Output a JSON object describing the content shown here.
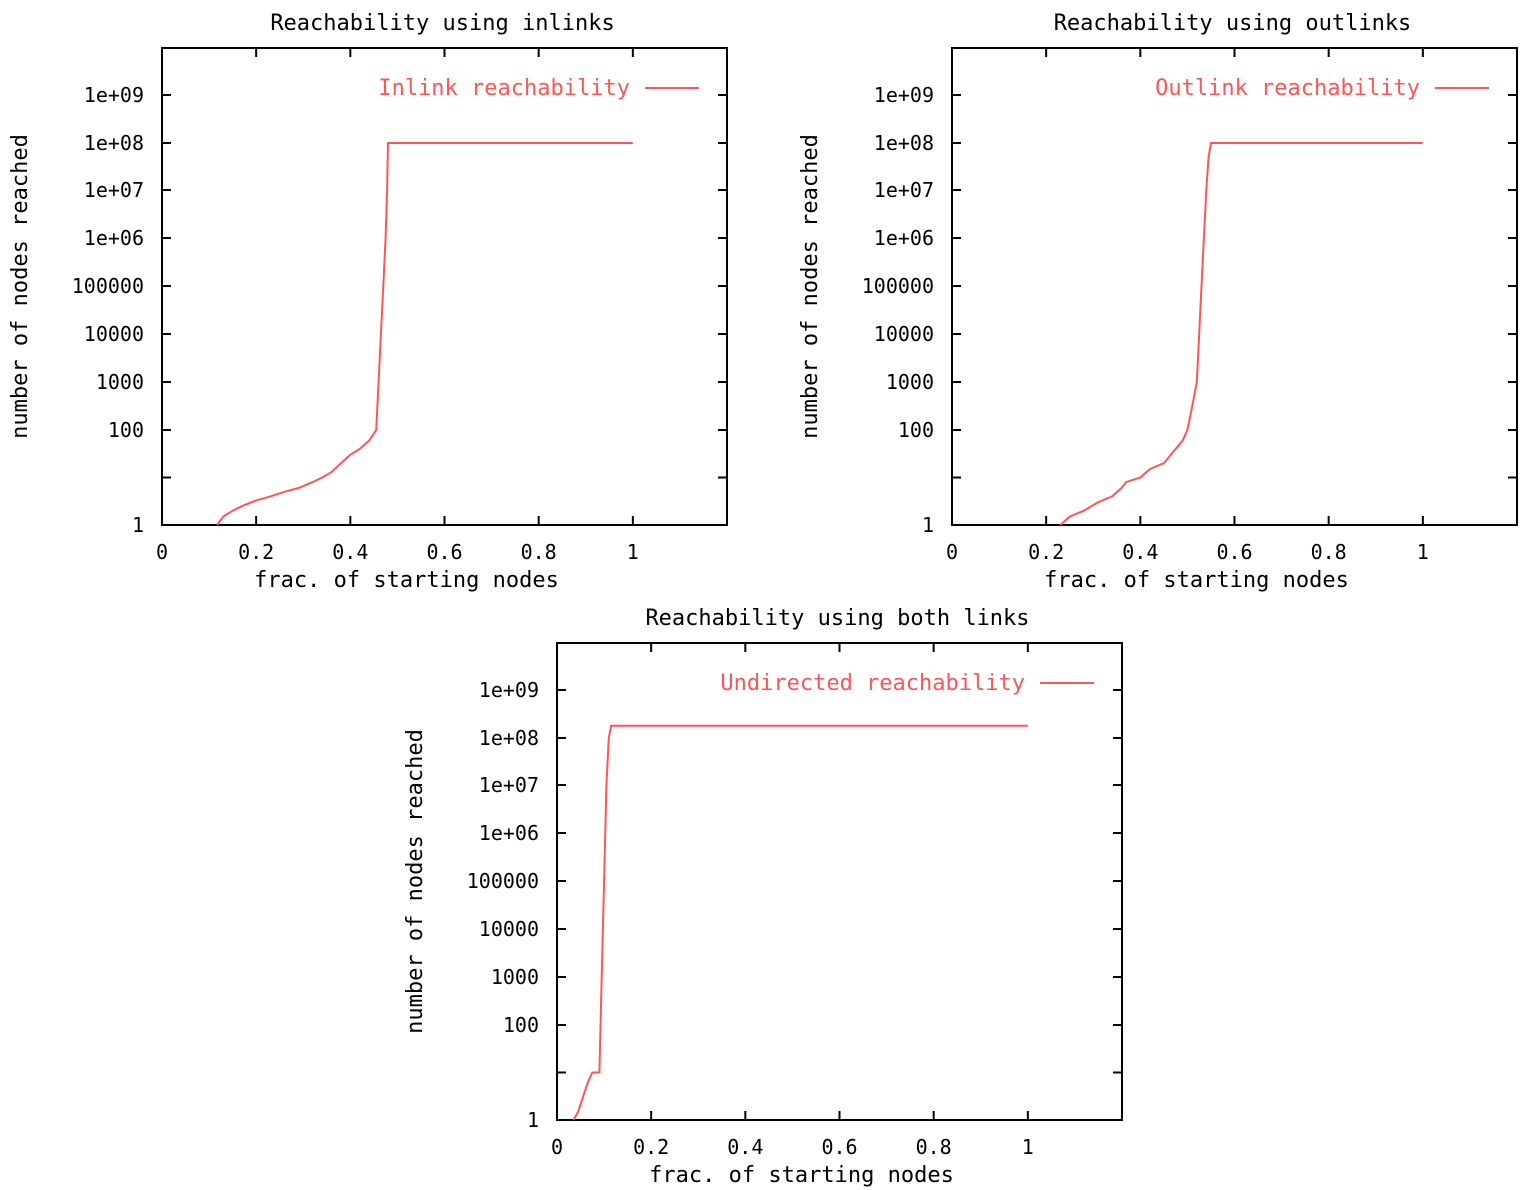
{
  "chart_data": [
    {
      "type": "line",
      "title": "Reachability using inlinks",
      "xlabel": "frac. of starting nodes",
      "ylabel": "number of nodes reached",
      "xlim": [
        0,
        1.2
      ],
      "ylim": [
        1,
        10000000000
      ],
      "yscale": "log",
      "xticks": [
        "0",
        "0.2",
        "0.4",
        "0.6",
        "0.8",
        "1"
      ],
      "yticks": [
        "1",
        "100",
        "1000",
        "10000",
        "100000",
        "1e+06",
        "1e+07",
        "1e+08",
        "1e+09"
      ],
      "legend_position": "top-right",
      "color": "#ff5555",
      "series": [
        {
          "name": "Inlink reachability",
          "x": [
            0.117,
            0.13,
            0.15,
            0.17,
            0.2,
            0.23,
            0.26,
            0.29,
            0.32,
            0.34,
            0.36,
            0.38,
            0.4,
            0.42,
            0.44,
            0.455,
            0.46,
            0.465,
            0.47,
            0.475,
            0.478,
            0.48,
            1.0
          ],
          "values": [
            1,
            1.5,
            2,
            2.5,
            3.3,
            4,
            5,
            6,
            8,
            10,
            13,
            20,
            30,
            40,
            60,
            100,
            1000,
            10000,
            100000,
            1000000,
            10000000,
            100000000,
            100000000
          ]
        }
      ]
    },
    {
      "type": "line",
      "title": "Reachability using outlinks",
      "xlabel": "frac. of starting nodes",
      "ylabel": "number of nodes reached",
      "xlim": [
        0,
        1.2
      ],
      "ylim": [
        1,
        10000000000
      ],
      "yscale": "log",
      "xticks": [
        "0",
        "0.2",
        "0.4",
        "0.6",
        "0.8",
        "1"
      ],
      "yticks": [
        "1",
        "100",
        "1000",
        "10000",
        "100000",
        "1e+06",
        "1e+07",
        "1e+08",
        "1e+09"
      ],
      "legend_position": "top-right",
      "color": "#ff5555",
      "series": [
        {
          "name": "Outlink reachability",
          "x": [
            0.23,
            0.25,
            0.28,
            0.31,
            0.34,
            0.36,
            0.37,
            0.4,
            0.42,
            0.45,
            0.47,
            0.49,
            0.5,
            0.51,
            0.52,
            0.525,
            0.53,
            0.535,
            0.54,
            0.545,
            0.55,
            1.0
          ],
          "values": [
            1,
            1.5,
            2,
            3,
            4,
            6,
            8,
            10,
            15,
            20,
            35,
            60,
            100,
            300,
            1000,
            10000,
            100000,
            1000000,
            10000000,
            50000000,
            100000000,
            100000000
          ]
        }
      ]
    },
    {
      "type": "line",
      "title": "Reachability using both links",
      "xlabel": "frac. of starting nodes",
      "ylabel": "number of nodes reached",
      "xlim": [
        0,
        1.2
      ],
      "ylim": [
        1,
        10000000000
      ],
      "yscale": "log",
      "xticks": [
        "0",
        "0.2",
        "0.4",
        "0.6",
        "0.8",
        "1"
      ],
      "yticks": [
        "1",
        "100",
        "1000",
        "10000",
        "100000",
        "1e+06",
        "1e+07",
        "1e+08",
        "1e+09"
      ],
      "legend_position": "top-right",
      "color": "#ff5555",
      "series": [
        {
          "name": "Undirected reachability",
          "x": [
            0.035,
            0.045,
            0.055,
            0.065,
            0.075,
            0.09,
            0.095,
            0.1,
            0.105,
            0.11,
            0.115,
            1.0
          ],
          "values": [
            1,
            1.5,
            3,
            6,
            10,
            10,
            1000,
            100000,
            10000000,
            100000000,
            180000000,
            180000000
          ]
        }
      ]
    }
  ]
}
